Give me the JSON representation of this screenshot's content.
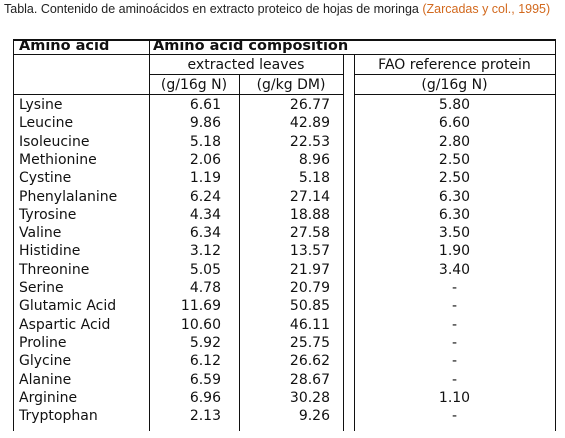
{
  "caption": {
    "text": "Tabla. Contenido de aminoácidos en extracto proteico de hojas de moringa ",
    "citation": "(Zarcadas y col., 1995)",
    "citation_color": "#d2691e"
  },
  "table": {
    "col_amino_acid": "Amino acid",
    "col_composition": "Amino acid composition",
    "sub_extracted": "extracted leaves",
    "sub_fao": "FAO reference protein",
    "unit_g16gN": "(g/16g N)",
    "unit_gkgDM": "(g/kg DM)",
    "unit_fao": "(g/16g N)",
    "rows": [
      {
        "name": "Lysine",
        "g16gN": "6.61",
        "gkgDM": "26.77",
        "fao": "5.80"
      },
      {
        "name": "Leucine",
        "g16gN": "9.86",
        "gkgDM": "42.89",
        "fao": "6.60"
      },
      {
        "name": "Isoleucine",
        "g16gN": "5.18",
        "gkgDM": "22.53",
        "fao": "2.80"
      },
      {
        "name": "Methionine",
        "g16gN": "2.06",
        "gkgDM": "8.96",
        "fao": "2.50"
      },
      {
        "name": "Cystine",
        "g16gN": "1.19",
        "gkgDM": "5.18",
        "fao": "2.50"
      },
      {
        "name": "Phenylalanine",
        "g16gN": "6.24",
        "gkgDM": "27.14",
        "fao": "6.30"
      },
      {
        "name": "Tyrosine",
        "g16gN": "4.34",
        "gkgDM": "18.88",
        "fao": "6.30"
      },
      {
        "name": "Valine",
        "g16gN": "6.34",
        "gkgDM": "27.58",
        "fao": "3.50"
      },
      {
        "name": "Histidine",
        "g16gN": "3.12",
        "gkgDM": "13.57",
        "fao": "1.90"
      },
      {
        "name": "Threonine",
        "g16gN": "5.05",
        "gkgDM": "21.97",
        "fao": "3.40"
      },
      {
        "name": "Serine",
        "g16gN": "4.78",
        "gkgDM": "20.79",
        "fao": "-"
      },
      {
        "name": "Glutamic Acid",
        "g16gN": "11.69",
        "gkgDM": "50.85",
        "fao": "-"
      },
      {
        "name": "Aspartic Acid",
        "g16gN": "10.60",
        "gkgDM": "46.11",
        "fao": "-"
      },
      {
        "name": "Proline",
        "g16gN": "5.92",
        "gkgDM": "25.75",
        "fao": "-"
      },
      {
        "name": "Glycine",
        "g16gN": "6.12",
        "gkgDM": "26.62",
        "fao": "-"
      },
      {
        "name": "Alanine",
        "g16gN": "6.59",
        "gkgDM": "28.67",
        "fao": "-"
      },
      {
        "name": "Arginine",
        "g16gN": "6.96",
        "gkgDM": "30.28",
        "fao": "1.10"
      },
      {
        "name": "Tryptophan",
        "g16gN": "2.13",
        "gkgDM": "9.26",
        "fao": "-"
      }
    ]
  }
}
